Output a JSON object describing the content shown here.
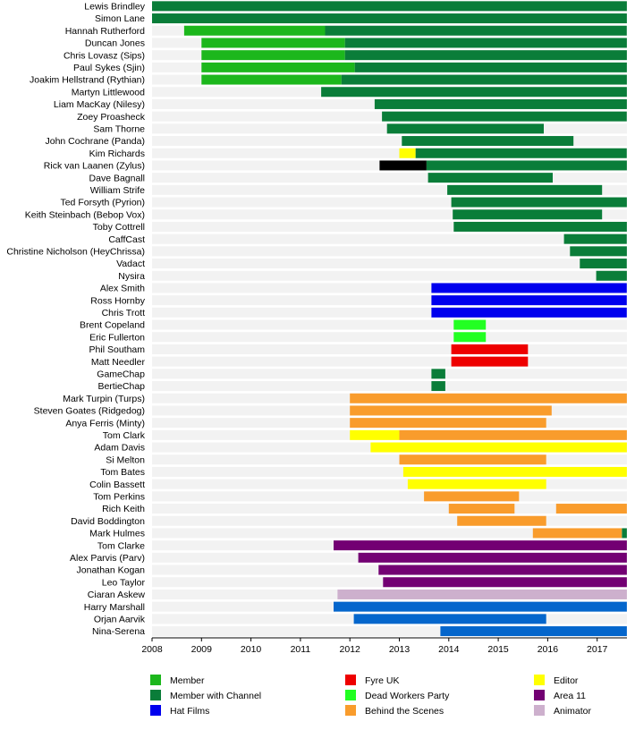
{
  "chart_data": {
    "type": "timeline",
    "title": "",
    "xlabel": "",
    "ylabel": "",
    "xlim": [
      2008,
      2017.6
    ],
    "x_ticks": [
      "2008",
      "2009",
      "2010",
      "2011",
      "2012",
      "2013",
      "2014",
      "2015",
      "2016",
      "2017"
    ],
    "colors": {
      "member": "#1cb71c",
      "channel": "#0a7d39",
      "hat": "#0000ee",
      "fyre": "#ee0000",
      "dwp": "#22ff22",
      "bts": "#f99c2c",
      "editor": "#ffff00",
      "area11": "#730073",
      "animator": "#cdb0cd",
      "blue": "#0466cc",
      "black": "#000000",
      "row_bg": "#f2f2f2"
    },
    "legend": [
      {
        "label": "Member",
        "key": "member"
      },
      {
        "label": "Member with Channel",
        "key": "channel"
      },
      {
        "label": "Hat Films",
        "key": "hat"
      },
      {
        "label": "Fyre UK",
        "key": "fyre"
      },
      {
        "label": "Dead Workers Party",
        "key": "dwp"
      },
      {
        "label": "Behind the Scenes",
        "key": "bts"
      },
      {
        "label": "Editor",
        "key": "editor"
      },
      {
        "label": "Area 11",
        "key": "area11"
      },
      {
        "label": "Animator",
        "key": "animator"
      }
    ],
    "rows": [
      {
        "name": "Lewis Brindley",
        "bars": [
          [
            2008,
            2017.6,
            "channel"
          ]
        ]
      },
      {
        "name": "Simon Lane",
        "bars": [
          [
            2008,
            2017.6,
            "channel"
          ]
        ]
      },
      {
        "name": "Hannah Rutherford",
        "bars": [
          [
            2008.65,
            2011.5,
            "member"
          ],
          [
            2011.5,
            2017.6,
            "channel"
          ]
        ]
      },
      {
        "name": "Duncan Jones",
        "bars": [
          [
            2009,
            2011.9,
            "member"
          ],
          [
            2011.9,
            2017.6,
            "channel"
          ]
        ]
      },
      {
        "name": "Chris Lovasz (Sips)",
        "bars": [
          [
            2009,
            2011.9,
            "member"
          ],
          [
            2011.9,
            2017.6,
            "channel"
          ]
        ]
      },
      {
        "name": "Paul Sykes (Sjin)",
        "bars": [
          [
            2009,
            2012.1,
            "member"
          ],
          [
            2012.1,
            2017.6,
            "channel"
          ]
        ]
      },
      {
        "name": "Joakim Hellstrand (Rythian)",
        "bars": [
          [
            2009,
            2011.83,
            "member"
          ],
          [
            2011.83,
            2017.6,
            "channel"
          ]
        ]
      },
      {
        "name": "Martyn Littlewood",
        "bars": [
          [
            2011.42,
            2017.6,
            "channel"
          ]
        ]
      },
      {
        "name": "Liam MacKay (Nilesy)",
        "bars": [
          [
            2012.5,
            2017.6,
            "channel"
          ]
        ]
      },
      {
        "name": "Zoey Proasheck",
        "bars": [
          [
            2012.65,
            2017.6,
            "channel"
          ]
        ]
      },
      {
        "name": "Sam Thorne",
        "bars": [
          [
            2012.75,
            2015.92,
            "channel"
          ]
        ]
      },
      {
        "name": "John Cochrane (Panda)",
        "bars": [
          [
            2013.05,
            2016.52,
            "channel"
          ]
        ]
      },
      {
        "name": "Kim Richards",
        "bars": [
          [
            2013,
            2013.33,
            "editor"
          ],
          [
            2013.33,
            2017.6,
            "channel"
          ]
        ]
      },
      {
        "name": "Rick van Laanen (Zylus)",
        "bars": [
          [
            2012.6,
            2013.55,
            "black"
          ],
          [
            2013.55,
            2017.6,
            "channel"
          ]
        ]
      },
      {
        "name": "Dave Bagnall",
        "bars": [
          [
            2013.58,
            2016.1,
            "channel"
          ]
        ]
      },
      {
        "name": "William Strife",
        "bars": [
          [
            2013.97,
            2017.1,
            "channel"
          ]
        ]
      },
      {
        "name": "Ted Forsyth (Pyrion)",
        "bars": [
          [
            2014.05,
            2017.6,
            "channel"
          ]
        ]
      },
      {
        "name": "Keith Steinbach (Bebop Vox)",
        "bars": [
          [
            2014.08,
            2017.1,
            "channel"
          ]
        ]
      },
      {
        "name": "Toby Cottrell",
        "bars": [
          [
            2014.1,
            2017.6,
            "channel"
          ]
        ]
      },
      {
        "name": "CaffCast",
        "bars": [
          [
            2016.33,
            2017.6,
            "channel"
          ]
        ]
      },
      {
        "name": "Christine Nicholson (HeyChrissa)",
        "bars": [
          [
            2016.45,
            2017.6,
            "channel"
          ]
        ]
      },
      {
        "name": "Vadact",
        "bars": [
          [
            2016.65,
            2017.6,
            "channel"
          ]
        ]
      },
      {
        "name": "Nysira",
        "bars": [
          [
            2016.98,
            2017.6,
            "channel"
          ]
        ]
      },
      {
        "name": "Alex Smith",
        "bars": [
          [
            2013.65,
            2017.6,
            "hat"
          ]
        ]
      },
      {
        "name": "Ross Hornby",
        "bars": [
          [
            2013.65,
            2017.6,
            "hat"
          ]
        ]
      },
      {
        "name": "Chris Trott",
        "bars": [
          [
            2013.65,
            2017.6,
            "hat"
          ]
        ]
      },
      {
        "name": "Brent Copeland",
        "bars": [
          [
            2014.1,
            2014.75,
            "dwp"
          ]
        ]
      },
      {
        "name": "Eric Fullerton",
        "bars": [
          [
            2014.1,
            2014.75,
            "dwp"
          ]
        ]
      },
      {
        "name": "Phil Southam",
        "bars": [
          [
            2014.05,
            2015.6,
            "fyre"
          ]
        ]
      },
      {
        "name": "Matt Needler",
        "bars": [
          [
            2014.05,
            2015.6,
            "fyre"
          ]
        ]
      },
      {
        "name": "GameChap",
        "bars": [
          [
            2013.65,
            2013.93,
            "channel"
          ]
        ]
      },
      {
        "name": "BertieChap",
        "bars": [
          [
            2013.65,
            2013.93,
            "channel"
          ]
        ]
      },
      {
        "name": "Mark Turpin (Turps)",
        "bars": [
          [
            2012,
            2017.6,
            "bts"
          ]
        ]
      },
      {
        "name": "Steven Goates (Ridgedog)",
        "bars": [
          [
            2012,
            2016.08,
            "bts"
          ]
        ]
      },
      {
        "name": "Anya Ferris (Minty)",
        "bars": [
          [
            2012,
            2015.97,
            "bts"
          ]
        ]
      },
      {
        "name": "Tom Clark",
        "bars": [
          [
            2012,
            2013,
            "editor"
          ],
          [
            2013,
            2017.6,
            "bts"
          ]
        ]
      },
      {
        "name": "Adam Davis",
        "bars": [
          [
            2012.42,
            2017.6,
            "editor"
          ]
        ]
      },
      {
        "name": "Si Melton",
        "bars": [
          [
            2013,
            2015.97,
            "bts"
          ]
        ]
      },
      {
        "name": "Tom Bates",
        "bars": [
          [
            2013.08,
            2017.6,
            "editor"
          ]
        ]
      },
      {
        "name": "Colin Bassett",
        "bars": [
          [
            2013.17,
            2015.97,
            "editor"
          ]
        ]
      },
      {
        "name": "Tom Perkins",
        "bars": [
          [
            2013.5,
            2015.42,
            "bts"
          ]
        ]
      },
      {
        "name": "Rich Keith",
        "bars": [
          [
            2014,
            2015.33,
            "bts"
          ],
          [
            2016.17,
            2017.6,
            "bts"
          ]
        ]
      },
      {
        "name": "David Boddington",
        "bars": [
          [
            2014.17,
            2015.97,
            "bts"
          ]
        ]
      },
      {
        "name": "Mark Hulmes",
        "bars": [
          [
            2015.7,
            2017.5,
            "bts"
          ],
          [
            2017.5,
            2017.6,
            "channel"
          ]
        ]
      },
      {
        "name": "Tom Clarke",
        "bars": [
          [
            2011.67,
            2017.6,
            "area11"
          ]
        ]
      },
      {
        "name": "Alex Parvis (Parv)",
        "bars": [
          [
            2012.17,
            2017.6,
            "area11"
          ]
        ]
      },
      {
        "name": "Jonathan Kogan",
        "bars": [
          [
            2012.58,
            2017.6,
            "area11"
          ]
        ]
      },
      {
        "name": "Leo Taylor",
        "bars": [
          [
            2012.67,
            2017.6,
            "area11"
          ]
        ]
      },
      {
        "name": "Ciaran Askew",
        "bars": [
          [
            2011.75,
            2017.6,
            "animator"
          ]
        ]
      },
      {
        "name": "Harry Marshall",
        "bars": [
          [
            2011.67,
            2017.6,
            "blue"
          ]
        ]
      },
      {
        "name": "Orjan Aarvik",
        "bars": [
          [
            2012.08,
            2015.97,
            "blue"
          ]
        ]
      },
      {
        "name": "Nina-Serena",
        "bars": [
          [
            2013.83,
            2017.6,
            "blue"
          ]
        ]
      }
    ]
  }
}
